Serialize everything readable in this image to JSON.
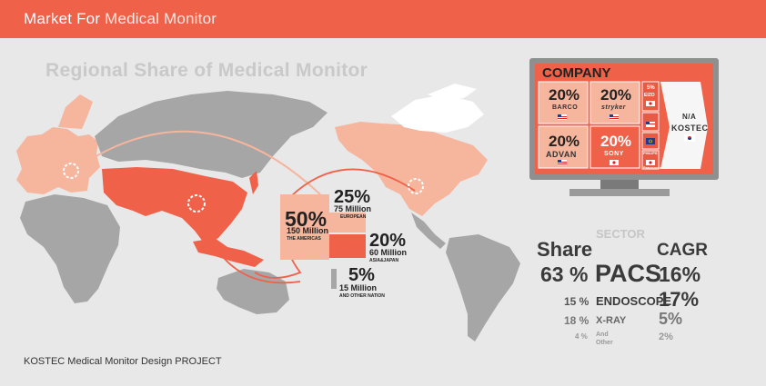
{
  "header": {
    "title_a": "Market For ",
    "title_b": "Medical Monitor"
  },
  "map_title": "Regional Share of Medical Monitor",
  "footer": "KOSTEC Medical Monitor Design PROJECT",
  "regions": [
    {
      "pct": "50%",
      "line1": "150 Million",
      "line2": "THE AMERICAS"
    },
    {
      "pct": "25%",
      "line1": "75 Million",
      "line2": "EUROPEAN"
    },
    {
      "pct": "20%",
      "line1": "60 Million",
      "line2": "ASIA&JAPAN"
    },
    {
      "pct": "5%",
      "line1": "15 Million",
      "line2": "AND OTHER NATION"
    }
  ],
  "company": {
    "title": "COMPANY",
    "cells": [
      {
        "pct": "20%",
        "brand": "BARCO"
      },
      {
        "pct": "20%",
        "brand": "stryker"
      },
      {
        "pct": "20%",
        "brand": "ADVAN"
      },
      {
        "pct": "20%",
        "brand": "SONY"
      }
    ],
    "small": [
      {
        "pct": "5%",
        "brand": "EIZO"
      },
      {
        "brand": "PHILIPS"
      },
      {
        "brand": "Panasonic"
      }
    ],
    "na": "N/A",
    "kostec": "KOSTEC"
  },
  "sector": {
    "title": "SECTOR",
    "share_h": "Share",
    "cagr_h": "CAGR",
    "rows": [
      {
        "share": "63 %",
        "name": "PACS",
        "cagr": "16%"
      },
      {
        "share": "15 %",
        "name": "ENDOSCOPE",
        "cagr": "17%"
      },
      {
        "share": "18 %",
        "name": "X-RAY",
        "cagr": "5%"
      },
      {
        "share": "4 %",
        "name": "And Other",
        "cagr": "2%"
      }
    ]
  },
  "colors": {
    "accent": "#f0614a",
    "light": "#f6b59d",
    "gray": "#a6a6a6"
  }
}
